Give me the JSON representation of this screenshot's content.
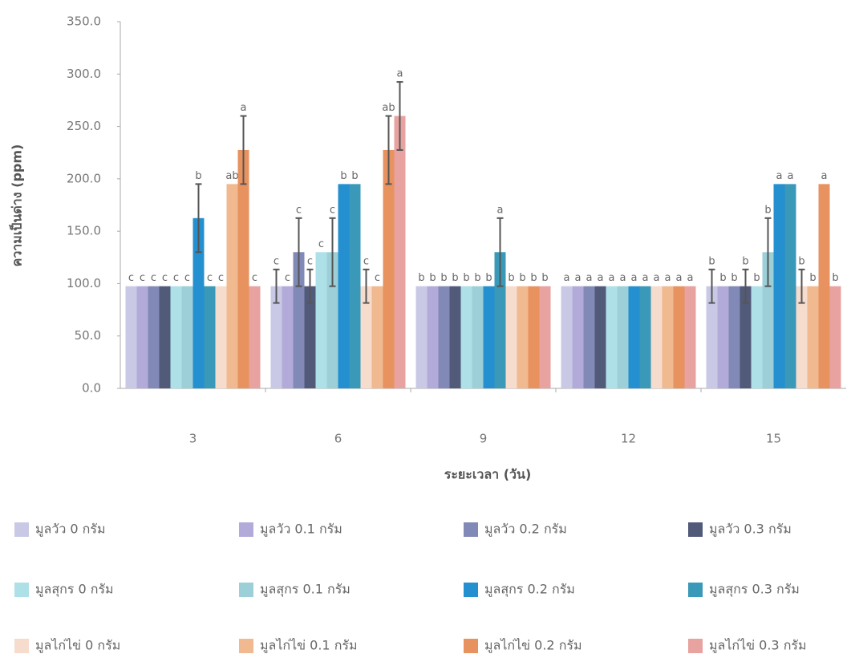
{
  "chart_data": {
    "type": "bar",
    "x_label": "ระยะเวลา (วัน)",
    "y_label": "ความเป็นด่าง (ppm)",
    "categories": [
      "3",
      "6",
      "9",
      "12",
      "15"
    ],
    "ylim": [
      0,
      350
    ],
    "yticks": [
      {
        "value": 0,
        "label": "0.0"
      },
      {
        "value": 50,
        "label": "50.0"
      },
      {
        "value": 100,
        "label": "100.0"
      },
      {
        "value": 150,
        "label": "150.0"
      },
      {
        "value": 200,
        "label": "200.0"
      },
      {
        "value": 250,
        "label": "250.0"
      },
      {
        "value": 300,
        "label": "300.0"
      },
      {
        "value": 350,
        "label": "350.0"
      }
    ],
    "series": [
      {
        "name": "มูลวัว 0 กรัม",
        "color": "#c9c9e6",
        "values": [
          97.5,
          97.5,
          97.5,
          97.5,
          97.5
        ],
        "errors": [
          null,
          16,
          null,
          null,
          16
        ],
        "labels": [
          "c",
          "c",
          "b",
          "a",
          "b"
        ]
      },
      {
        "name": "มูลวัว 0.1 กรัม",
        "color": "#b2aad8",
        "values": [
          97.5,
          97.5,
          97.5,
          97.5,
          97.5
        ],
        "errors": [
          null,
          null,
          null,
          null,
          null
        ],
        "labels": [
          "c",
          "c",
          "b",
          "a",
          "b"
        ]
      },
      {
        "name": "มูลวัว 0.2 กรัม",
        "color": "#8189b6",
        "values": [
          97.5,
          130,
          97.5,
          97.5,
          97.5
        ],
        "errors": [
          null,
          32.5,
          null,
          null,
          null
        ],
        "labels": [
          "c",
          "c",
          "b",
          "a",
          "b"
        ]
      },
      {
        "name": "มูลวัว 0.3 กรัม",
        "color": "#525a7a",
        "values": [
          97.5,
          97.5,
          97.5,
          97.5,
          97.5
        ],
        "errors": [
          null,
          16,
          null,
          null,
          16
        ],
        "labels": [
          "c",
          "c",
          "b",
          "a",
          "b"
        ]
      },
      {
        "name": "มูลสุกร 0 กรัม",
        "color": "#aee0e8",
        "values": [
          97.5,
          130,
          97.5,
          97.5,
          97.5
        ],
        "errors": [
          null,
          null,
          null,
          null,
          null
        ],
        "labels": [
          "c",
          "c",
          "b",
          "a",
          "b"
        ]
      },
      {
        "name": "มูลสุกร 0.1 กรัม",
        "color": "#9ccfd8",
        "values": [
          97.5,
          130,
          97.5,
          97.5,
          130
        ],
        "errors": [
          null,
          32.5,
          null,
          null,
          32.5
        ],
        "labels": [
          "c",
          "c",
          "b",
          "a",
          "b"
        ]
      },
      {
        "name": "มูลสุกร  0.2 กรัม",
        "color": "#2490d0",
        "values": [
          162.5,
          195,
          97.5,
          97.5,
          195
        ],
        "errors": [
          32.5,
          null,
          null,
          null,
          null
        ],
        "labels": [
          "b",
          "b",
          "b",
          "a",
          "a"
        ]
      },
      {
        "name": "มูลสุกร 0.3 กรัม",
        "color": "#3a99b8",
        "values": [
          97.5,
          195,
          130,
          97.5,
          195
        ],
        "errors": [
          null,
          null,
          32.5,
          null,
          null
        ],
        "labels": [
          "c",
          "b",
          "a",
          "a",
          "a"
        ]
      },
      {
        "name": "มูลไก่ไข่ 0 กรัม",
        "color": "#f6dccd",
        "values": [
          97.5,
          97.5,
          97.5,
          97.5,
          97.5
        ],
        "errors": [
          null,
          16,
          null,
          null,
          16
        ],
        "labels": [
          "c",
          "c",
          "b",
          "a",
          "b"
        ]
      },
      {
        "name": "มูลไก่ไข่ 0.1 กรัม",
        "color": "#f0b98f",
        "values": [
          195,
          97.5,
          97.5,
          97.5,
          97.5
        ],
        "errors": [
          null,
          null,
          null,
          null,
          null
        ],
        "labels": [
          "ab",
          "c",
          "b",
          "a",
          "b"
        ]
      },
      {
        "name": "มูลไก่ไข่  0.2 กรัม",
        "color": "#e8925f",
        "values": [
          227.5,
          227.5,
          97.5,
          97.5,
          195
        ],
        "errors": [
          32.5,
          32.5,
          null,
          null,
          null
        ],
        "labels": [
          "a",
          "ab",
          "b",
          "a",
          "a"
        ]
      },
      {
        "name": "มูลไก่ไข่  0.3 กรัม",
        "color": "#e8a2a0",
        "values": [
          97.5,
          260,
          97.5,
          97.5,
          97.5
        ],
        "errors": [
          null,
          32.5,
          null,
          null,
          null
        ],
        "labels": [
          "c",
          "a",
          "b",
          "a",
          "b"
        ]
      }
    ]
  }
}
